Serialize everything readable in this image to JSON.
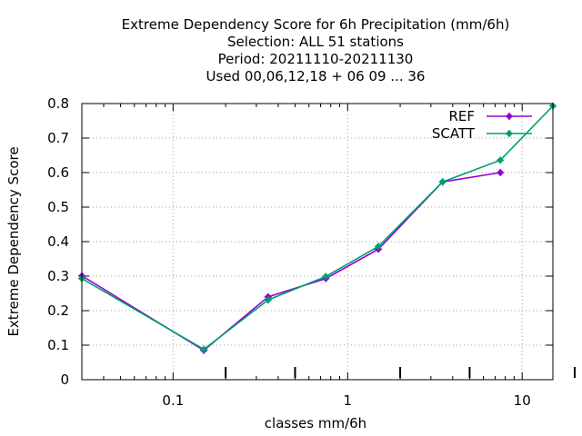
{
  "chart_data": {
    "type": "line",
    "title": [
      "Extreme Dependency Score  for 6h Precipitation (mm/6h)",
      "Selection: ALL     51 stations",
      "Period: 20211110-20211130",
      "Used  00,06,12,18 + 06 09 ... 36"
    ],
    "xlabel": "classes mm/6h",
    "ylabel": "Extreme Dependency Score",
    "x_scale": "log",
    "xlim": [
      0.03,
      15
    ],
    "ylim": [
      0,
      0.8
    ],
    "x_ticks": [
      {
        "value": 0.1,
        "label": "0.1"
      },
      {
        "value": 1,
        "label": "1"
      },
      {
        "value": 10,
        "label": "10"
      }
    ],
    "y_ticks": [
      {
        "value": 0,
        "label": "0"
      },
      {
        "value": 0.1,
        "label": "0.1"
      },
      {
        "value": 0.2,
        "label": "0.2"
      },
      {
        "value": 0.3,
        "label": "0.3"
      },
      {
        "value": 0.4,
        "label": "0.4"
      },
      {
        "value": 0.5,
        "label": "0.5"
      },
      {
        "value": 0.6,
        "label": "0.6"
      },
      {
        "value": 0.7,
        "label": "0.7"
      },
      {
        "value": 0.8,
        "label": "0.8"
      }
    ],
    "grid": true,
    "legend_position": "top-right",
    "series": [
      {
        "name": "REF",
        "color": "#9400d3",
        "points": [
          [
            0.03,
            0.301
          ],
          [
            0.15,
            0.085
          ],
          [
            0.35,
            0.24
          ],
          [
            0.75,
            0.293
          ],
          [
            1.5,
            0.378
          ],
          [
            3.5,
            0.573
          ],
          [
            7.5,
            0.6
          ]
        ]
      },
      {
        "name": "SCATT",
        "color": "#009e73",
        "points": [
          [
            0.03,
            0.293
          ],
          [
            0.15,
            0.088
          ],
          [
            0.35,
            0.231
          ],
          [
            0.75,
            0.299
          ],
          [
            1.5,
            0.386
          ],
          [
            3.5,
            0.573
          ],
          [
            7.5,
            0.636
          ],
          [
            15,
            0.793
          ]
        ]
      }
    ]
  }
}
